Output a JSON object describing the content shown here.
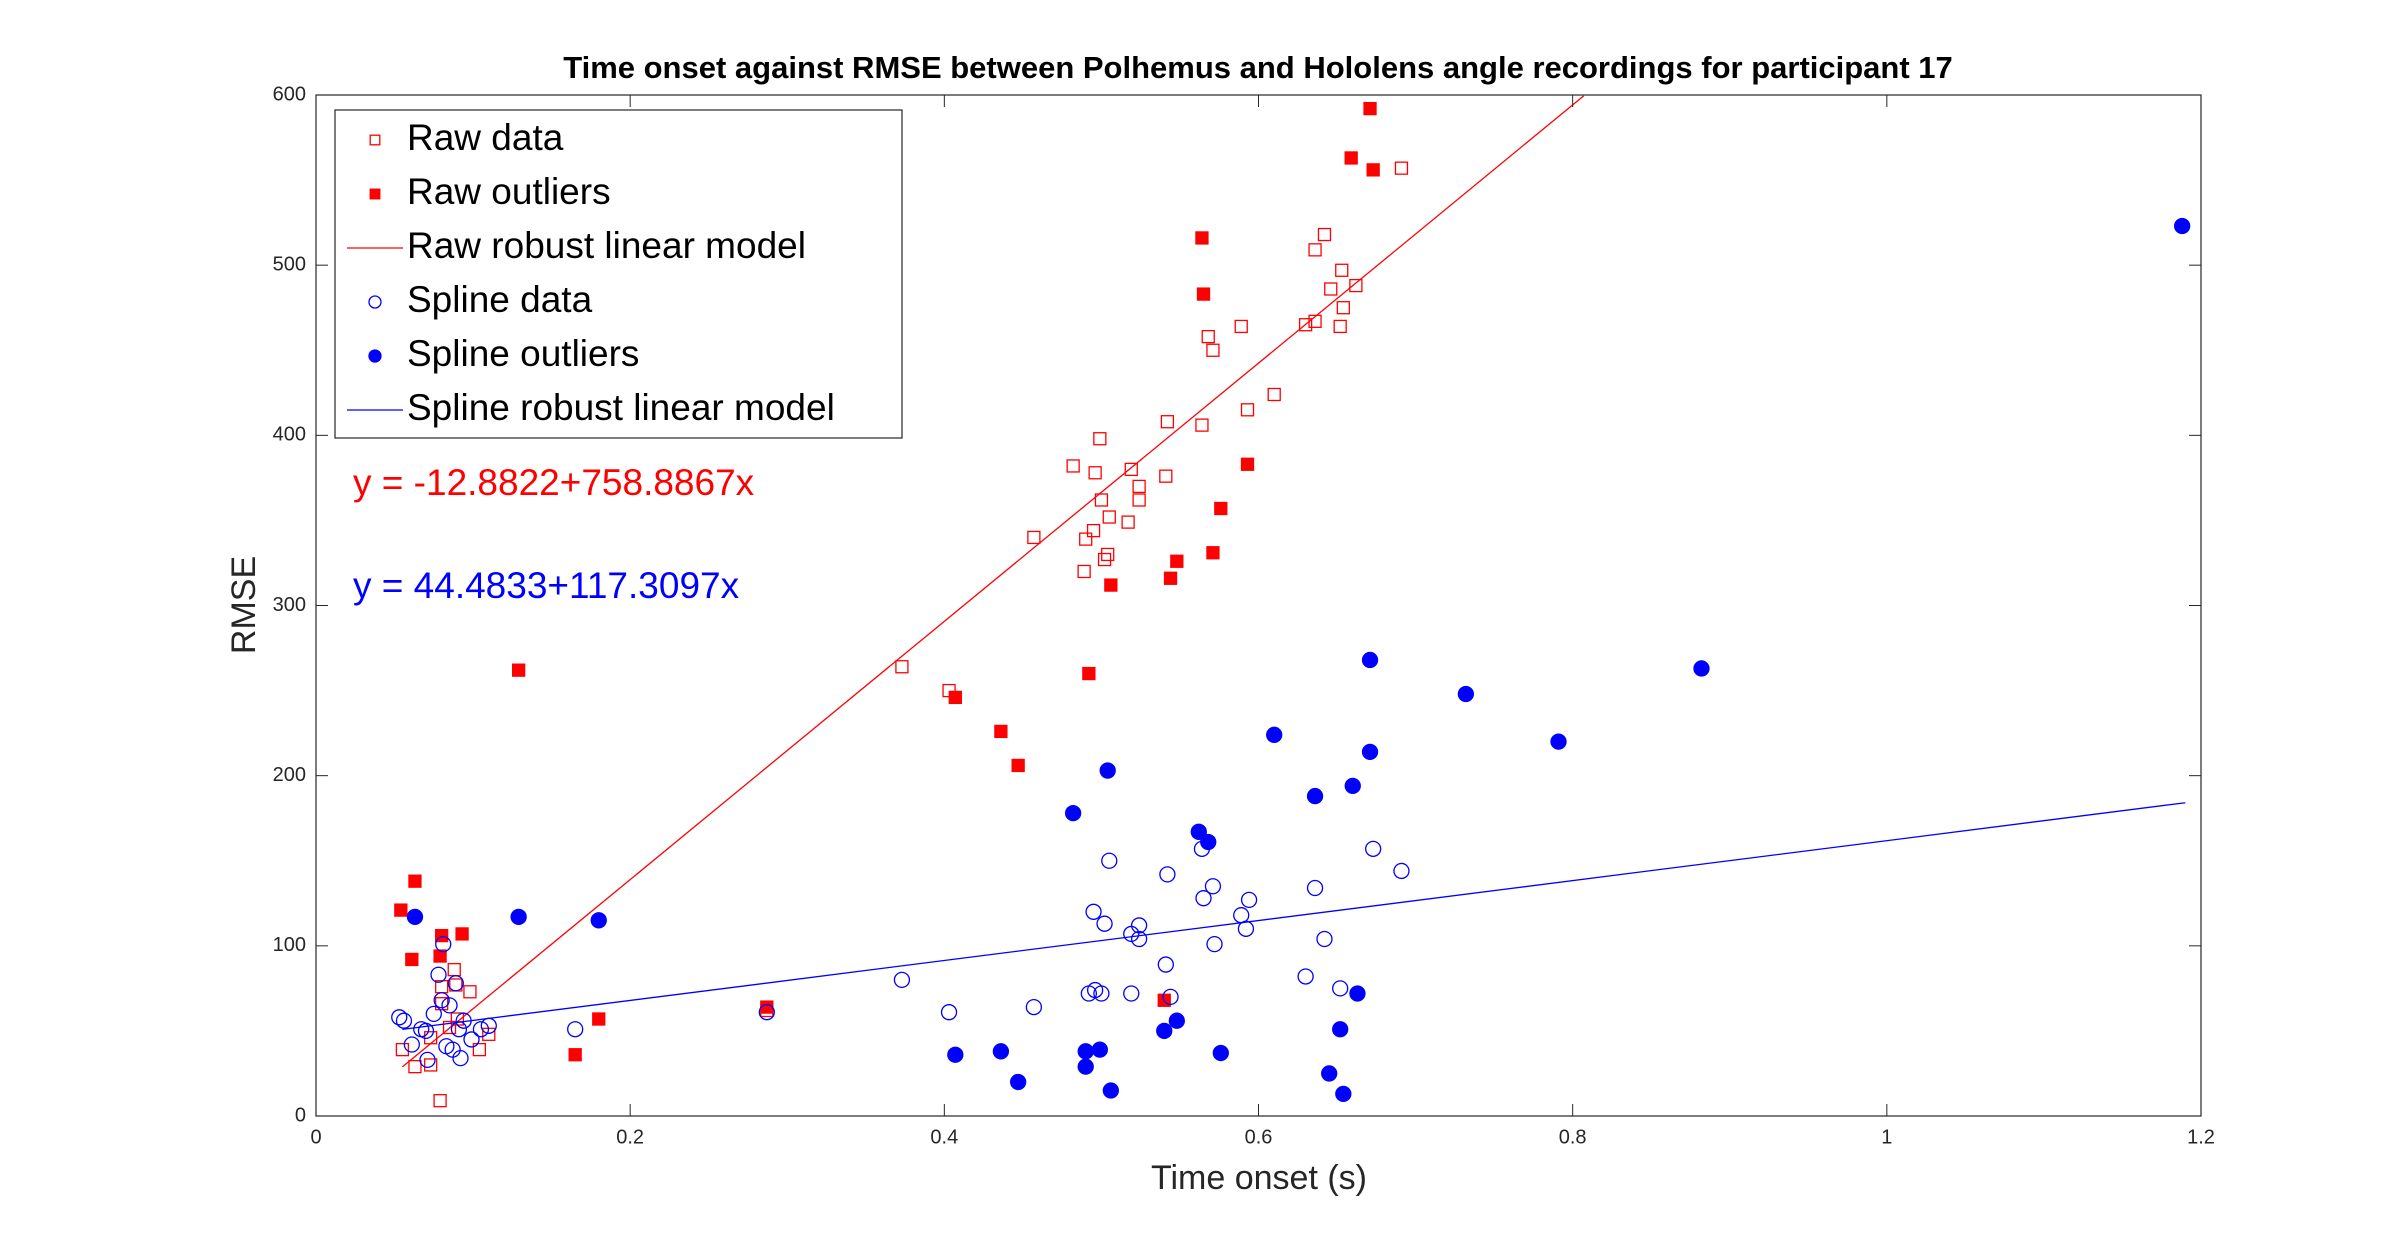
{
  "chart_data": {
    "type": "scatter",
    "title": "Time onset against RMSE between Polhemus and Hololens angle recordings for participant 17",
    "x_label": "Time onset (s)",
    "y_label": "RMSE",
    "xlim": [
      0,
      1.2
    ],
    "xticks": [
      0,
      0.2,
      0.4,
      0.6,
      0.8,
      1,
      1.2
    ],
    "ylim": [
      0,
      600
    ],
    "yticks": [
      0,
      100,
      200,
      300,
      400,
      500,
      600
    ],
    "grid": false,
    "legend": "upper left",
    "annotations": [
      {
        "text": "y = -12.8822+758.8867x",
        "color": "#ff0000"
      },
      {
        "text": "y = 44.4833+117.3097x",
        "color": "#0000ff"
      }
    ],
    "series": [
      {
        "name": "Raw data",
        "color": "#ff0000",
        "marker": "square-open",
        "x": [
          0.055,
          0.063,
          0.073,
          0.079,
          0.08,
          0.088,
          0.089,
          0.09,
          0.098,
          0.104,
          0.11,
          0.08,
          0.073,
          0.085,
          0.373,
          0.403,
          0.457,
          0.482,
          0.489,
          0.49,
          0.495,
          0.496,
          0.499,
          0.5,
          0.502,
          0.504,
          0.505,
          0.517,
          0.519,
          0.524,
          0.524,
          0.541,
          0.542,
          0.564,
          0.568,
          0.571,
          0.589,
          0.593,
          0.61,
          0.63,
          0.636,
          0.636,
          0.642,
          0.646,
          0.652,
          0.653,
          0.654,
          0.662,
          0.691,
          0.287
        ],
        "values": [
          39,
          29,
          30,
          9,
          76,
          86,
          77,
          57,
          73,
          39,
          48,
          66,
          46,
          52,
          264,
          250,
          340,
          382,
          320,
          339,
          344,
          378,
          398,
          362,
          327,
          330,
          352,
          349,
          380,
          370,
          362,
          376,
          408,
          406,
          458,
          450,
          464,
          415,
          424,
          465,
          467,
          509,
          518,
          486,
          464,
          497,
          475,
          488,
          557,
          62
        ]
      },
      {
        "name": "Raw outliers",
        "color": "#ff0000",
        "marker": "square-filled",
        "x": [
          0.054,
          0.063,
          0.061,
          0.079,
          0.08,
          0.093,
          0.129,
          0.165,
          0.18,
          0.287,
          0.407,
          0.436,
          0.447,
          0.492,
          0.506,
          0.54,
          0.544,
          0.548,
          0.564,
          0.565,
          0.571,
          0.576,
          0.593,
          0.659,
          0.671,
          0.673
        ],
        "values": [
          121,
          138,
          92,
          94,
          106,
          107,
          262,
          36,
          57,
          64,
          246,
          226,
          206,
          260,
          312,
          68,
          316,
          326,
          516,
          483,
          331,
          357,
          383,
          563,
          592,
          556
        ]
      },
      {
        "name": "Raw robust linear model",
        "color": "#ff0000",
        "marker": "line",
        "x": [
          0.055,
          0.807
        ],
        "values": [
          28.9,
          599.5
        ]
      },
      {
        "name": "Spline data",
        "color": "#0000ff",
        "marker": "circle-open",
        "x": [
          0.053,
          0.056,
          0.061,
          0.067,
          0.07,
          0.071,
          0.075,
          0.078,
          0.08,
          0.081,
          0.083,
          0.085,
          0.087,
          0.089,
          0.091,
          0.092,
          0.094,
          0.099,
          0.105,
          0.11,
          0.165,
          0.287,
          0.373,
          0.403,
          0.457,
          0.492,
          0.495,
          0.496,
          0.5,
          0.502,
          0.505,
          0.519,
          0.519,
          0.524,
          0.524,
          0.541,
          0.542,
          0.544,
          0.564,
          0.565,
          0.571,
          0.572,
          0.589,
          0.592,
          0.594,
          0.63,
          0.636,
          0.642,
          0.652,
          0.673,
          0.691
        ],
        "values": [
          58,
          56,
          42,
          51,
          50,
          33,
          60,
          83,
          68,
          101,
          41,
          65,
          39,
          78,
          51,
          34,
          56,
          45,
          51,
          53,
          51,
          61,
          80,
          61,
          64,
          72,
          120,
          74,
          72,
          113,
          150,
          72,
          107,
          112,
          104,
          89,
          142,
          70,
          157,
          128,
          135,
          101,
          118,
          110,
          127,
          82,
          134,
          104,
          75,
          157,
          144
        ]
      },
      {
        "name": "Spline outliers",
        "color": "#0000ff",
        "marker": "circle-filled",
        "x": [
          0.063,
          0.129,
          0.18,
          0.407,
          0.436,
          0.447,
          0.482,
          0.49,
          0.49,
          0.499,
          0.504,
          0.506,
          0.54,
          0.548,
          0.562,
          0.568,
          0.576,
          0.61,
          0.636,
          0.645,
          0.652,
          0.654,
          0.66,
          0.663,
          0.671,
          0.671,
          0.732,
          0.791,
          0.882,
          1.188
        ],
        "values": [
          117,
          117,
          115,
          36,
          38,
          20,
          178,
          38,
          29,
          39,
          203,
          15,
          50,
          56,
          167,
          161,
          37,
          224,
          188,
          25,
          51,
          13,
          194,
          72,
          268,
          214,
          248,
          220,
          263,
          523
        ]
      },
      {
        "name": "Spline robust linear model",
        "color": "#0000ff",
        "marker": "line",
        "x": [
          0.055,
          1.19
        ],
        "values": [
          50.9,
          184.1
        ]
      }
    ]
  }
}
